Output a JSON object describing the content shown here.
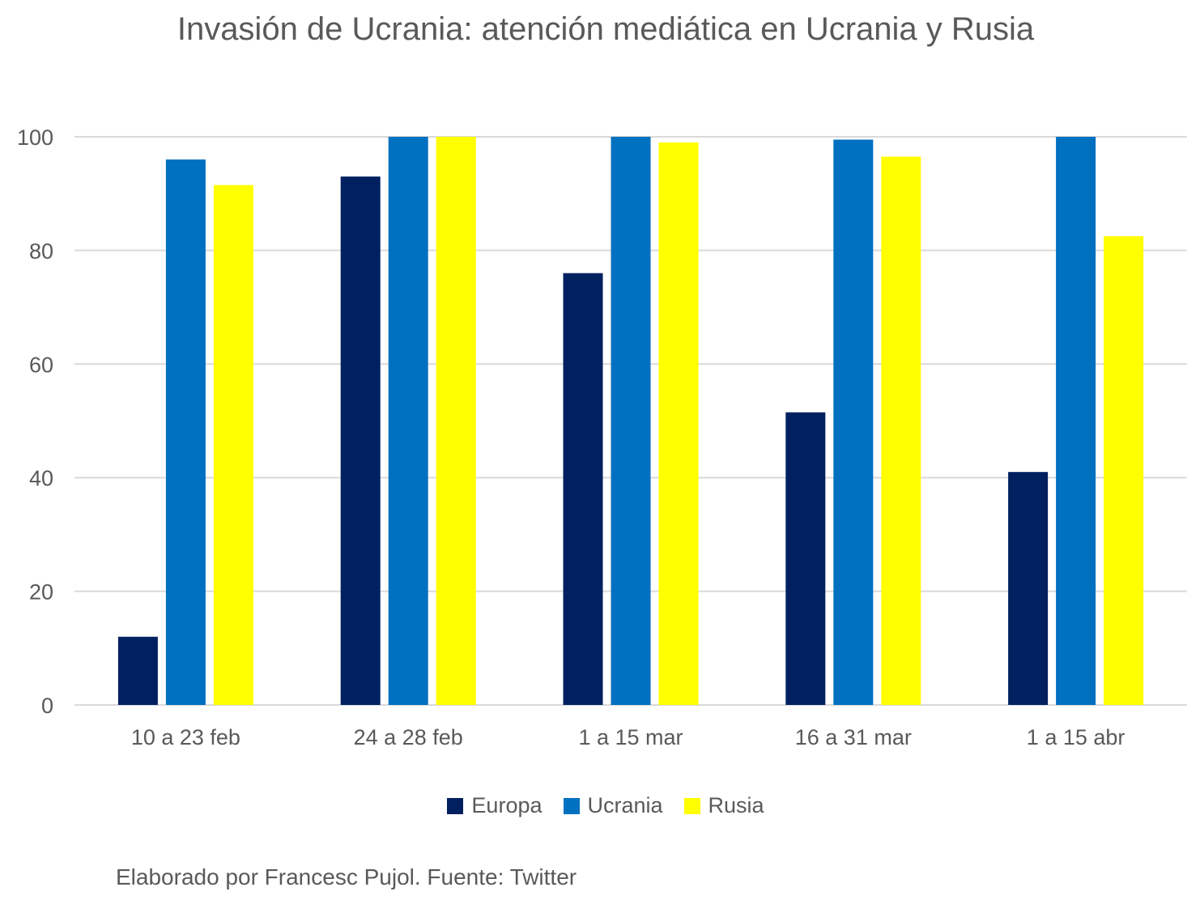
{
  "chart_data": {
    "type": "bar",
    "title": "Invasión de Ucrania: atención mediática en Ucrania y Rusia",
    "categories": [
      "10 a 23 feb",
      "24 a 28 feb",
      "1 a 15 mar",
      "16 a 31 mar",
      "1 a 15 abr"
    ],
    "series": [
      {
        "name": "Europa",
        "color": "#002060",
        "values": [
          12,
          93,
          76,
          51.5,
          41
        ]
      },
      {
        "name": "Ucrania",
        "color": "#0070C0",
        "values": [
          96,
          100,
          100,
          99.5,
          100
        ]
      },
      {
        "name": "Rusia",
        "color": "#FFFF00",
        "values": [
          91.5,
          100,
          99,
          96.5,
          82.5
        ]
      }
    ],
    "ylim": [
      0,
      100
    ],
    "yticks": [
      0,
      20,
      40,
      60,
      80,
      100
    ],
    "grid": true,
    "legend_position": "bottom",
    "xlabel": "",
    "ylabel": ""
  },
  "footer": {
    "source": "Elaborado por Francesc Pujol. Fuente: Twitter"
  }
}
